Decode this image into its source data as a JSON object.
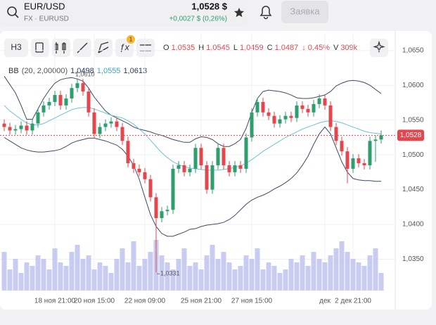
{
  "header": {
    "symbol": "EUR/USD",
    "exchange": "FX · EURUSD",
    "price": "1,0528 $",
    "change": "+0,0027 $ (0,26%)",
    "order_button": "Заявка"
  },
  "toolbar": {
    "interval": "H3",
    "badge": "1",
    "ohlc": [
      {
        "key": "O",
        "value": "1,0535"
      },
      {
        "key": "H",
        "value": "1,0545"
      },
      {
        "key": "L",
        "value": "1,0459"
      },
      {
        "key": "C",
        "value": "1,0487"
      }
    ],
    "change": "↓ 0,45%",
    "volume_key": "V",
    "volume": "309k"
  },
  "indicator": {
    "name": "BB",
    "params": "(20, 2,00000)",
    "values": [
      "1,0498",
      "1,0555",
      "1,0613"
    ]
  },
  "chart_data": {
    "type": "candlestick",
    "ylim": [
      1.0305,
      1.0674
    ],
    "yticks": [
      {
        "value": 1.065,
        "label": "1,0650"
      },
      {
        "value": 1.06,
        "label": "1,0600"
      },
      {
        "value": 1.055,
        "label": "1,0550"
      },
      {
        "value": 1.05,
        "label": "1,0500"
      },
      {
        "value": 1.045,
        "label": "1,0450"
      },
      {
        "value": 1.04,
        "label": "1,0400"
      },
      {
        "value": 1.035,
        "label": "1,0350"
      }
    ],
    "xticks": [
      {
        "value": 9,
        "label": "18 ноя 21:00"
      },
      {
        "value": 16,
        "label": "20 ноя 15:00"
      },
      {
        "value": 25,
        "label": "22 ноя 09:00"
      },
      {
        "value": 35,
        "label": "25 ноя 21:00"
      },
      {
        "value": 44,
        "label": "27 ноя 15:00"
      },
      {
        "value": 57,
        "label": "дек"
      },
      {
        "value": 62,
        "label": "2 дек 21:00"
      }
    ],
    "grid": true,
    "up_color": "#2f9e6e",
    "down_color": "#e2474e",
    "volume_color": "#c9ccf1",
    "candles": [
      [
        1.0545,
        1.0551,
        1.0534,
        1.054
      ],
      [
        1.054,
        1.0546,
        1.0529,
        1.0535
      ],
      [
        1.0535,
        1.0543,
        1.0529,
        1.0537
      ],
      [
        1.0537,
        1.0548,
        1.0531,
        1.0542
      ],
      [
        1.0542,
        1.0548,
        1.0529,
        1.0535
      ],
      [
        1.0535,
        1.0551,
        1.0529,
        1.0545
      ],
      [
        1.0545,
        1.0567,
        1.0539,
        1.0561
      ],
      [
        1.0561,
        1.0577,
        1.0555,
        1.0571
      ],
      [
        1.0571,
        1.0582,
        1.0565,
        1.0576
      ],
      [
        1.0576,
        1.0592,
        1.057,
        1.0586
      ],
      [
        1.0586,
        1.0592,
        1.0565,
        1.0571
      ],
      [
        1.0571,
        1.0587,
        1.0565,
        1.0581
      ],
      [
        1.0581,
        1.0602,
        1.0575,
        1.0596
      ],
      [
        1.0596,
        1.061,
        1.059,
        1.0603
      ],
      [
        1.0603,
        1.0609,
        1.0585,
        1.0591
      ],
      [
        1.0591,
        1.0597,
        1.0555,
        1.0561
      ],
      [
        1.0561,
        1.0567,
        1.0524,
        1.053
      ],
      [
        1.053,
        1.0546,
        1.0524,
        1.054
      ],
      [
        1.054,
        1.0551,
        1.0534,
        1.0545
      ],
      [
        1.0545,
        1.0554,
        1.0539,
        1.0548
      ],
      [
        1.0548,
        1.0554,
        1.0534,
        1.054
      ],
      [
        1.054,
        1.0546,
        1.0514,
        1.052
      ],
      [
        1.052,
        1.0526,
        1.0482,
        1.0488
      ],
      [
        1.0488,
        1.0494,
        1.0474,
        1.048
      ],
      [
        1.048,
        1.0486,
        1.0469,
        1.0475
      ],
      [
        1.0475,
        1.0481,
        1.0459,
        1.0465
      ],
      [
        1.0465,
        1.0471,
        1.0433,
        1.0439
      ],
      [
        1.0439,
        1.0445,
        1.0331,
        1.0409
      ],
      [
        1.0409,
        1.0425,
        1.0403,
        1.0419
      ],
      [
        1.0419,
        1.0427,
        1.0413,
        1.0421
      ],
      [
        1.0421,
        1.0486,
        1.0415,
        1.048
      ],
      [
        1.048,
        1.0491,
        1.0474,
        1.0485
      ],
      [
        1.0485,
        1.0491,
        1.0469,
        1.0475
      ],
      [
        1.0475,
        1.0486,
        1.0469,
        1.048
      ],
      [
        1.048,
        1.0516,
        1.0474,
        1.051
      ],
      [
        1.051,
        1.0516,
        1.0479,
        1.0485
      ],
      [
        1.0485,
        1.0491,
        1.0444,
        1.045
      ],
      [
        1.045,
        1.0491,
        1.0444,
        1.0485
      ],
      [
        1.0485,
        1.0516,
        1.0479,
        1.051
      ],
      [
        1.051,
        1.0516,
        1.0479,
        1.0485
      ],
      [
        1.0485,
        1.0491,
        1.0469,
        1.0475
      ],
      [
        1.0475,
        1.0491,
        1.0469,
        1.0485
      ],
      [
        1.0485,
        1.0491,
        1.0474,
        1.048
      ],
      [
        1.048,
        1.0531,
        1.0474,
        1.0525
      ],
      [
        1.0525,
        1.0567,
        1.0519,
        1.0561
      ],
      [
        1.0561,
        1.0582,
        1.0555,
        1.0576
      ],
      [
        1.0576,
        1.0582,
        1.0555,
        1.0561
      ],
      [
        1.0561,
        1.0567,
        1.055,
        1.0556
      ],
      [
        1.0556,
        1.0562,
        1.0539,
        1.0545
      ],
      [
        1.0545,
        1.0557,
        1.0539,
        1.0551
      ],
      [
        1.0551,
        1.0562,
        1.0545,
        1.0556
      ],
      [
        1.0556,
        1.0562,
        1.0547,
        1.0553
      ],
      [
        1.0553,
        1.0577,
        1.0547,
        1.0571
      ],
      [
        1.0571,
        1.0577,
        1.056,
        1.0566
      ],
      [
        1.0566,
        1.0572,
        1.0555,
        1.0561
      ],
      [
        1.0561,
        1.0579,
        1.0555,
        1.0573
      ],
      [
        1.0573,
        1.0587,
        1.0567,
        1.0581
      ],
      [
        1.0581,
        1.0587,
        1.0565,
        1.0571
      ],
      [
        1.0571,
        1.0577,
        1.0534,
        1.054
      ],
      [
        1.054,
        1.0546,
        1.0514,
        1.052
      ],
      [
        1.052,
        1.0526,
        1.0499,
        1.0505
      ],
      [
        1.0505,
        1.0511,
        1.0459,
        1.048
      ],
      [
        1.048,
        1.0501,
        1.0474,
        1.0495
      ],
      [
        1.0495,
        1.0501,
        1.0482,
        1.0488
      ],
      [
        1.0488,
        1.0494,
        1.0479,
        1.0485
      ],
      [
        1.0485,
        1.0526,
        1.0479,
        1.052
      ],
      [
        1.052,
        1.0528,
        1.049,
        1.0522
      ],
      [
        1.0522,
        1.0535,
        1.0516,
        1.0528
      ]
    ],
    "volumes": [
      55,
      30,
      45,
      25,
      40,
      35,
      50,
      45,
      30,
      60,
      40,
      35,
      55,
      65,
      45,
      50,
      30,
      40,
      35,
      25,
      45,
      60,
      40,
      70,
      35,
      45,
      55,
      72,
      50,
      40,
      30,
      45,
      60,
      35,
      40,
      30,
      50,
      65,
      45,
      55,
      40,
      30,
      35,
      50,
      45,
      60,
      30,
      40,
      35,
      25,
      30,
      45,
      40,
      50,
      35,
      55,
      45,
      40,
      50,
      60,
      70,
      55,
      45,
      40,
      35,
      50,
      60,
      25
    ],
    "bands": [
      {
        "color": "#3d4a66",
        "values": [
          1.0613,
          1.0601,
          1.0589,
          1.0571,
          1.0551,
          1.0551,
          1.0566,
          1.0581,
          1.0593,
          1.0603,
          1.0608,
          1.061,
          1.0611,
          1.0609,
          1.0606,
          1.0596,
          1.0583,
          1.0573,
          1.0563,
          1.0557,
          1.0553,
          1.0549,
          1.0545,
          1.054,
          1.0537,
          1.0535,
          1.0533,
          1.053,
          1.0528,
          1.0525,
          1.0522,
          1.052,
          1.0518,
          1.0518,
          1.0523,
          1.0526,
          1.0525,
          1.0522,
          1.0516,
          1.0512,
          1.0512,
          1.0516,
          1.0522,
          1.0538,
          1.0561,
          1.0581,
          1.0591,
          1.0593,
          1.0592,
          1.0591,
          1.0589,
          1.0586,
          1.0582,
          1.0581,
          1.0581,
          1.0582,
          1.0584,
          1.0586,
          1.0591,
          1.0599,
          1.0603,
          1.0606,
          1.0607,
          1.0606,
          1.0604,
          1.06,
          1.0594,
          1.0588
        ]
      },
      {
        "color": "#6cc3d5",
        "values": [
          1.0571,
          1.0563,
          1.0557,
          1.0551,
          1.0546,
          1.0543,
          1.0543,
          1.0545,
          1.0549,
          1.0553,
          1.0557,
          1.0561,
          1.0565,
          1.0567,
          1.0568,
          1.0568,
          1.0566,
          1.0563,
          1.056,
          1.0557,
          1.0555,
          1.0553,
          1.0549,
          1.0544,
          1.0537,
          1.053,
          1.0521,
          1.0512,
          1.0503,
          1.0496,
          1.049,
          1.0486,
          1.0483,
          1.0481,
          1.048,
          1.0479,
          1.0478,
          1.0478,
          1.0478,
          1.0479,
          1.048,
          1.0482,
          1.0484,
          1.0488,
          1.0493,
          1.0499,
          1.0505,
          1.051,
          1.0515,
          1.052,
          1.0525,
          1.0529,
          1.0533,
          1.0537,
          1.054,
          1.0543,
          1.0546,
          1.0548,
          1.0549,
          1.0548,
          1.0546,
          1.0543,
          1.054,
          1.0537,
          1.0534,
          1.0532,
          1.0531,
          1.053
        ]
      },
      {
        "color": "#3d4a66",
        "values": [
          1.0525,
          1.052,
          1.0515,
          1.051,
          1.0507,
          1.0505,
          1.0504,
          1.0504,
          1.0505,
          1.0506,
          1.0508,
          1.0512,
          1.0517,
          1.052,
          1.0522,
          1.0524,
          1.0524,
          1.0522,
          1.052,
          1.0517,
          1.0514,
          1.0508,
          1.0498,
          1.0485,
          1.0465,
          1.0439,
          1.0414,
          1.0397,
          1.0387,
          1.0383,
          1.0383,
          1.0386,
          1.0389,
          1.0393,
          1.0394,
          1.0397,
          1.0399,
          1.04,
          1.0401,
          1.0403,
          1.0407,
          1.0413,
          1.0421,
          1.0429,
          1.0435,
          1.0439,
          1.0442,
          1.0446,
          1.0451,
          1.0455,
          1.046,
          1.0466,
          1.0474,
          1.0485,
          1.0498,
          1.0515,
          1.053,
          1.054,
          1.053,
          1.051,
          1.049,
          1.0475,
          1.0466,
          1.0464,
          1.0463,
          1.0463,
          1.0462,
          1.0462
        ]
      }
    ],
    "annotations": [
      {
        "text": "1,0610",
        "candle": 13
      },
      {
        "text": "1,0331",
        "candle": 27
      }
    ],
    "last_price": 1.0528,
    "last_price_label": "1,0528"
  }
}
